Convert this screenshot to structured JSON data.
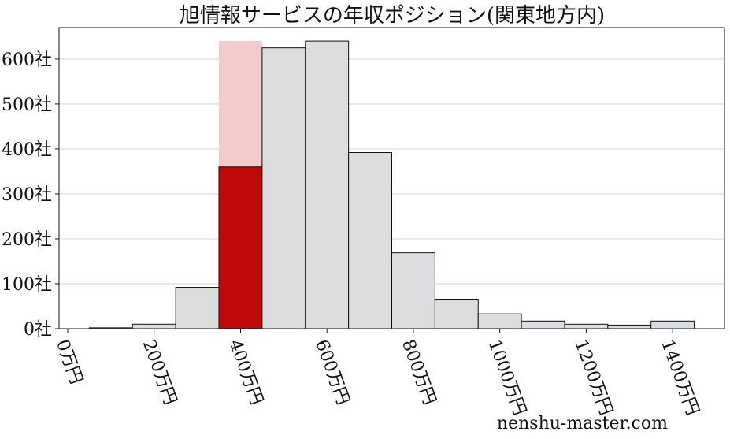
{
  "chart_data": {
    "type": "bar",
    "title": "旭情報サービスの年収ポジション(関東地方内)",
    "xlabel": "",
    "ylabel": "",
    "x_ticks": [
      "0万円",
      "200万円",
      "400万円",
      "600万円",
      "800万円",
      "1000万円",
      "1200万円",
      "1400万円"
    ],
    "x_tick_values": [
      0,
      200,
      400,
      600,
      800,
      1000,
      1200,
      1400
    ],
    "y_ticks": [
      "0社",
      "100社",
      "200社",
      "300社",
      "400社",
      "500社",
      "600社"
    ],
    "y_tick_values": [
      0,
      100,
      200,
      300,
      400,
      500,
      600
    ],
    "ylim": [
      0,
      670
    ],
    "xlim": [
      -20,
      1520
    ],
    "bin_width": 100,
    "bins": [
      {
        "start": 50,
        "value": 2
      },
      {
        "start": 150,
        "value": 10
      },
      {
        "start": 250,
        "value": 92
      },
      {
        "start": 350,
        "value": 640
      },
      {
        "start": 450,
        "value": 625
      },
      {
        "start": 550,
        "value": 640
      },
      {
        "start": 650,
        "value": 392
      },
      {
        "start": 750,
        "value": 169
      },
      {
        "start": 850,
        "value": 64
      },
      {
        "start": 950,
        "value": 33
      },
      {
        "start": 1050,
        "value": 17
      },
      {
        "start": 1150,
        "value": 10
      },
      {
        "start": 1250,
        "value": 8
      },
      {
        "start": 1350,
        "value": 17
      }
    ],
    "highlight": {
      "bin_index": 3,
      "value": 360
    },
    "grid": true,
    "colors": {
      "bar_fill": "#dcdddf",
      "highlight_fill": "#c00a0a",
      "highlight_bin_fill": "#f2cccc",
      "bar_stroke": "#111111",
      "grid": "#d5d5d5"
    }
  },
  "watermark": "nenshu-master.com"
}
